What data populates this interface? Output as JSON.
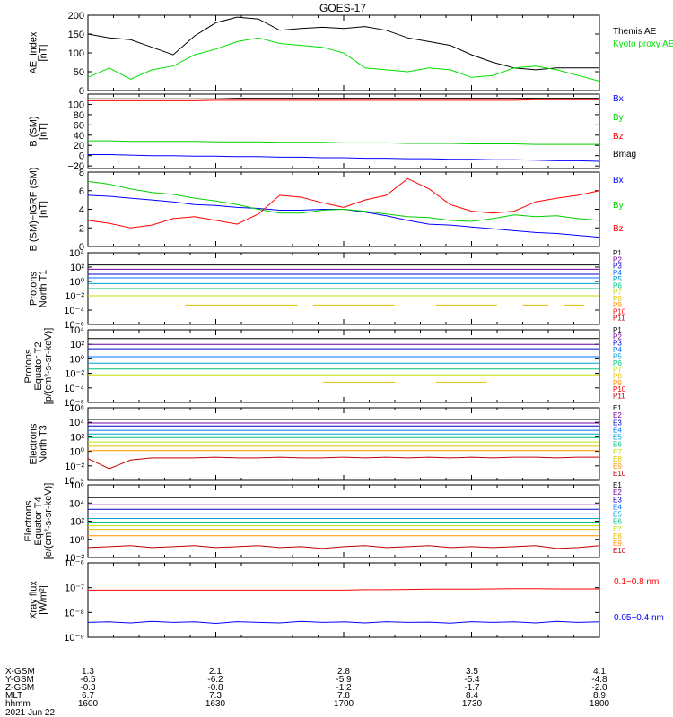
{
  "title": "GOES-17",
  "footer": {
    "row_labels": [
      "X-GSM",
      "Y-GSM",
      "Z-GSM",
      "MLT",
      "hhmm"
    ],
    "date": "2021 Jun 22",
    "columns": [
      [
        "1.3",
        "-6.5",
        "-0.3",
        "6.7",
        "1600"
      ],
      [
        "2.1",
        "-6.2",
        "-0.8",
        "7.3",
        "1630"
      ],
      [
        "2.8",
        "-5.9",
        "-1.2",
        "7.8",
        "1700"
      ],
      [
        "3.5",
        "-5.4",
        "-1.7",
        "8.4",
        "1730"
      ],
      [
        "4.1",
        "-4.8",
        "-2.0",
        "8.9",
        "1800"
      ]
    ]
  },
  "chart_data": [
    {
      "type": "line",
      "ylabel": [
        "AE_index",
        "[nT]"
      ],
      "ylim": [
        0,
        200
      ],
      "yticks": [
        "0",
        "50",
        "100",
        "150",
        "200"
      ],
      "x_hhmm": [
        1600,
        1605,
        1610,
        1615,
        1620,
        1625,
        1630,
        1635,
        1640,
        1645,
        1650,
        1655,
        1700,
        1705,
        1710,
        1715,
        1720,
        1725,
        1730,
        1735,
        1740,
        1745,
        1750,
        1755,
        1800
      ],
      "series": [
        {
          "name": "Themis AE",
          "color": "#000000",
          "values": [
            150,
            140,
            135,
            115,
            95,
            145,
            180,
            195,
            190,
            160,
            165,
            168,
            165,
            170,
            160,
            140,
            130,
            120,
            95,
            75,
            60,
            55,
            60,
            60,
            60
          ]
        },
        {
          "name": "Kyoto proxy AE",
          "color": "#00e000",
          "values": [
            35,
            60,
            30,
            55,
            65,
            95,
            110,
            130,
            140,
            125,
            120,
            115,
            100,
            60,
            55,
            50,
            60,
            55,
            35,
            40,
            60,
            65,
            55,
            40,
            25
          ]
        }
      ]
    },
    {
      "type": "line",
      "ylabel": [
        "B (SM)",
        "[nT]"
      ],
      "ylim": [
        -25,
        120
      ],
      "yticks": [
        "−20",
        "0",
        "20",
        "40",
        "60",
        "80",
        "100"
      ],
      "series": [
        {
          "name": "Bx",
          "color": "#0000ff",
          "values": [
            2,
            2,
            1,
            0,
            0,
            -1,
            -1,
            -2,
            -2,
            -3,
            -3,
            -4,
            -4,
            -5,
            -5,
            -6,
            -6,
            -7,
            -7,
            -8,
            -8,
            -9,
            -10,
            -10,
            -11
          ]
        },
        {
          "name": "By",
          "color": "#00d000",
          "values": [
            29,
            29,
            28,
            28,
            28,
            28,
            27,
            27,
            27,
            26,
            26,
            26,
            25,
            25,
            25,
            24,
            24,
            24,
            23,
            23,
            23,
            22,
            22,
            22,
            22
          ]
        },
        {
          "name": "Bz",
          "color": "#ff0000",
          "values": [
            107,
            107,
            107,
            107,
            107,
            107,
            108,
            108,
            108,
            108,
            108,
            108,
            108,
            108,
            108,
            108,
            108,
            108,
            108,
            108,
            108,
            109,
            109,
            109,
            109
          ]
        },
        {
          "name": "Bmag",
          "color": "#000000",
          "values": [
            111,
            111,
            111,
            111,
            111,
            111,
            111,
            112,
            112,
            112,
            112,
            112,
            112,
            112,
            112,
            112,
            112,
            112,
            112,
            112,
            112,
            112,
            112,
            112,
            112
          ]
        }
      ]
    },
    {
      "type": "line",
      "ylabel": [
        "B (SM)−IGRF (SM)",
        "[nT]"
      ],
      "ylim": [
        0,
        8
      ],
      "yticks": [
        "0",
        "2",
        "4",
        "6",
        "8"
      ],
      "series": [
        {
          "name": "Bx",
          "color": "#0000ff",
          "values": [
            5.5,
            5.4,
            5.2,
            5.0,
            4.8,
            4.5,
            4.4,
            4.2,
            4.1,
            3.9,
            3.9,
            4.0,
            4.0,
            3.7,
            3.3,
            2.8,
            2.4,
            2.3,
            2.1,
            1.9,
            1.7,
            1.5,
            1.4,
            1.2,
            1.0
          ]
        },
        {
          "name": "By",
          "color": "#00d000",
          "values": [
            7.0,
            6.7,
            6.2,
            5.8,
            5.6,
            5.2,
            4.9,
            4.5,
            4.0,
            3.6,
            3.6,
            3.9,
            4.0,
            3.8,
            3.5,
            3.2,
            3.1,
            2.8,
            2.7,
            3.0,
            3.4,
            3.2,
            3.3,
            3.0,
            2.8
          ]
        },
        {
          "name": "Bz",
          "color": "#ff0000",
          "values": [
            2.8,
            2.5,
            2.0,
            2.3,
            3.0,
            3.2,
            2.8,
            2.4,
            3.5,
            5.5,
            5.3,
            4.7,
            4.2,
            5.0,
            5.5,
            7.3,
            6.2,
            4.5,
            3.8,
            3.6,
            3.8,
            4.8,
            5.2,
            5.5,
            6.0
          ]
        }
      ]
    },
    {
      "type": "line",
      "ylabel": [
        "Protons",
        "North T1"
      ],
      "yscale": "log",
      "ylim": [
        -6,
        4
      ],
      "yticks": [
        "10⁻⁶",
        "10⁻⁴",
        "10⁻²",
        "10⁰",
        "10²",
        "10⁴"
      ],
      "series": [
        {
          "name": "P1",
          "color": "#000000",
          "log10_values": [
            2.3
          ]
        },
        {
          "name": "P2",
          "color": "#7000a0",
          "log10_values": [
            1.7
          ]
        },
        {
          "name": "P3",
          "color": "#0000d0",
          "log10_values": [
            1.0
          ]
        },
        {
          "name": "P4",
          "color": "#0070ff",
          "log10_values": [
            0.5
          ]
        },
        {
          "name": "P5",
          "color": "#00a0d0",
          "log10_values": [
            -0.3
          ]
        },
        {
          "name": "P6",
          "color": "#00c080",
          "log10_values": [
            -1.0
          ]
        },
        {
          "name": "P7",
          "color": "#c0e000",
          "log10_values": [
            -2.0
          ]
        },
        {
          "name": "P8",
          "color": "#e0c000",
          "log10_values": [
            -3.3
          ]
        },
        {
          "name": "P9",
          "color": "#ff9000",
          "log10_values": []
        },
        {
          "name": "P10",
          "color": "#ff0000",
          "log10_values": []
        },
        {
          "name": "P11",
          "color": "#c00000",
          "log10_values": []
        }
      ]
    },
    {
      "type": "line",
      "ylabel": [
        "Protons",
        "Equator T2",
        "[p/(cm²-s-sr-keV)]"
      ],
      "yscale": "log",
      "ylim": [
        -6,
        4
      ],
      "yticks": [
        "10⁻⁶",
        "10⁻⁴",
        "10⁻²",
        "10⁰",
        "10²",
        "10⁴"
      ],
      "series": [
        {
          "name": "P1",
          "color": "#000000",
          "log10_values": [
            2.8
          ]
        },
        {
          "name": "P2",
          "color": "#7000a0",
          "log10_values": [
            2.0
          ]
        },
        {
          "name": "P3",
          "color": "#0000d0",
          "log10_values": [
            1.4
          ]
        },
        {
          "name": "P4",
          "color": "#0070ff",
          "log10_values": [
            0.3
          ]
        },
        {
          "name": "P5",
          "color": "#00a0d0",
          "log10_values": [
            -0.6
          ]
        },
        {
          "name": "P6",
          "color": "#00c080",
          "log10_values": [
            -1.4
          ]
        },
        {
          "name": "P7",
          "color": "#c0e000",
          "log10_values": [
            -2.2
          ]
        },
        {
          "name": "P8",
          "color": "#e0c000",
          "log10_values": [
            -3.2
          ]
        },
        {
          "name": "P9",
          "color": "#ff9000",
          "log10_values": []
        },
        {
          "name": "P10",
          "color": "#ff0000",
          "log10_values": []
        },
        {
          "name": "P11",
          "color": "#c00000",
          "log10_values": []
        }
      ]
    },
    {
      "type": "line",
      "ylabel": [
        "Electrons",
        "North T3"
      ],
      "yscale": "log",
      "ylim": [
        -4,
        6
      ],
      "yticks": [
        "10⁻⁴",
        "10⁻²",
        "10⁰",
        "10²",
        "10⁴",
        "10⁶"
      ],
      "series": [
        {
          "name": "E1",
          "color": "#000000",
          "log10_values": [
            4.4
          ]
        },
        {
          "name": "E2",
          "color": "#7000a0",
          "log10_values": [
            3.9
          ]
        },
        {
          "name": "E3",
          "color": "#0000d0",
          "log10_values": [
            3.5
          ]
        },
        {
          "name": "E4",
          "color": "#0070ff",
          "log10_values": [
            2.9
          ]
        },
        {
          "name": "E5",
          "color": "#00a0d0",
          "log10_values": [
            2.4
          ]
        },
        {
          "name": "E6",
          "color": "#00c080",
          "log10_values": [
            1.9
          ]
        },
        {
          "name": "E7",
          "color": "#c0e000",
          "log10_values": [
            1.3
          ]
        },
        {
          "name": "E8",
          "color": "#e0c000",
          "log10_values": [
            0.7
          ]
        },
        {
          "name": "E9",
          "color": "#ff9000",
          "log10_values": [
            0.1
          ]
        },
        {
          "name": "E10",
          "color": "#c00000",
          "log10_values": [
            -1.0,
            -2.4,
            -1.2,
            -0.9,
            -0.9,
            -0.9,
            -0.8,
            -0.9,
            -0.9,
            -0.8,
            -0.9,
            -0.9,
            -0.8,
            -0.9,
            -0.8,
            -0.9,
            -0.8,
            -0.9,
            -0.8,
            -0.9,
            -0.8,
            -0.8,
            -0.9,
            -0.8,
            -0.8
          ]
        }
      ]
    },
    {
      "type": "line",
      "ylabel": [
        "Electrons",
        "Equator T4",
        "[e/(cm²-s-sr-keV)]"
      ],
      "yscale": "log",
      "ylim": [
        -2,
        6
      ],
      "yticks": [
        "10⁻²",
        "10⁰",
        "10²",
        "10⁴",
        "10⁶"
      ],
      "series": [
        {
          "name": "E1",
          "color": "#000000",
          "log10_values": [
            4.6
          ]
        },
        {
          "name": "E2",
          "color": "#7000a0",
          "log10_values": [
            3.8
          ]
        },
        {
          "name": "E3",
          "color": "#0000d0",
          "log10_values": [
            3.3
          ]
        },
        {
          "name": "E4",
          "color": "#0070ff",
          "log10_values": [
            2.8
          ]
        },
        {
          "name": "E5",
          "color": "#00a0d0",
          "log10_values": [
            2.3
          ]
        },
        {
          "name": "E6",
          "color": "#00c080",
          "log10_values": [
            1.9
          ]
        },
        {
          "name": "E7",
          "color": "#c0e000",
          "log10_values": [
            1.5
          ]
        },
        {
          "name": "E8",
          "color": "#e0c000",
          "log10_values": [
            1.1
          ]
        },
        {
          "name": "E9",
          "color": "#ff9000",
          "log10_values": [
            0.4
          ]
        },
        {
          "name": "E10",
          "color": "#c00000",
          "log10_values": [
            -0.9,
            -0.8,
            -0.7,
            -0.9,
            -0.8,
            -0.7,
            -0.9,
            -0.8,
            -0.7,
            -0.9,
            -0.8,
            -1.0,
            -0.8,
            -0.7,
            -0.9,
            -0.8,
            -0.7,
            -0.9,
            -0.8,
            -0.9,
            -0.8,
            -0.7,
            -1.0,
            -0.9,
            -0.7
          ]
        }
      ]
    },
    {
      "type": "line",
      "ylabel": [
        "Xray flux",
        "[W/m²]"
      ],
      "yscale": "log",
      "ylim": [
        -9,
        -6
      ],
      "yticks": [
        "10⁻⁹",
        "10⁻⁸",
        "10⁻⁷",
        "10⁻⁶"
      ],
      "series": [
        {
          "name": "0.1−0.8 nm",
          "color": "#ff0000",
          "log10_values": [
            -7.1,
            -7.1,
            -7.1,
            -7.1,
            -7.1,
            -7.1,
            -7.1,
            -7.1,
            -7.1,
            -7.1,
            -7.1,
            -7.1,
            -7.1,
            -7.08,
            -7.08,
            -7.07,
            -7.06,
            -7.06,
            -7.06,
            -7.05,
            -7.04,
            -7.04,
            -7.05,
            -7.05,
            -7.05
          ]
        },
        {
          "name": "0.05−0.4 nm",
          "color": "#0000ff",
          "log10_values": [
            -8.4,
            -8.38,
            -8.42,
            -8.36,
            -8.4,
            -8.38,
            -8.44,
            -8.37,
            -8.4,
            -8.42,
            -8.36,
            -8.4,
            -8.38,
            -8.42,
            -8.37,
            -8.4,
            -8.39,
            -8.43,
            -8.37,
            -8.4,
            -8.38,
            -8.42,
            -8.36,
            -8.4,
            -8.38
          ]
        }
      ]
    }
  ]
}
